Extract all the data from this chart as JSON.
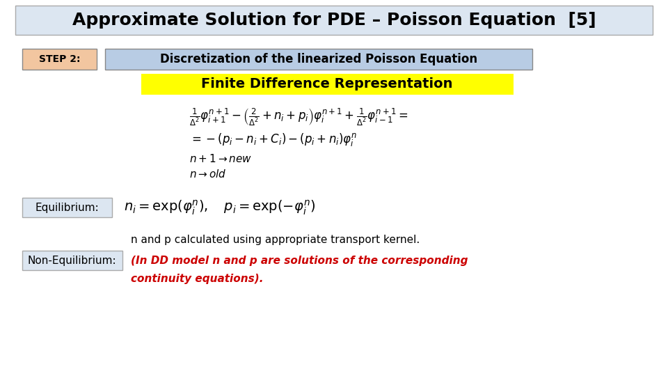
{
  "title": "Approximate Solution for PDE – Poisson Equation  [5]",
  "title_bg": "#dce6f1",
  "title_fontsize": 18,
  "step2_label": "STEP 2:",
  "step2_bg": "#f2c6a0",
  "step2_text": "Discretization of the linearized Poisson Equation",
  "step2_text_bg": "#b8cce4",
  "finite_diff_text": "Finite Difference Representation",
  "finite_diff_bg": "#ffff00",
  "eq1": "$\\frac{1}{\\Delta^2}\\varphi_{i+1}^{n+1} - \\left(\\frac{2}{\\Delta^2} + n_i + p_i\\right)\\varphi_i^{n+1} + \\frac{1}{\\Delta^2}\\varphi_{i-1}^{n+1} =$",
  "eq2": "$= -(p_i - n_i + C_i) - (p_i + n_i)\\varphi_i^n$",
  "eq3": "$n+1 \\rightarrow new$",
  "eq4": "$n \\rightarrow old$",
  "equil_label": "Equilibrium:",
  "equil_label_bg": "#dce6f1",
  "equil_eq": "$n_i = \\exp(\\varphi_i^n), \\quad p_i = \\exp(-\\varphi_i^n)$",
  "noneq_label": "Non-Equilibrium:",
  "noneq_label_bg": "#dce6f1",
  "noneq_text1": "n and p calculated using appropriate transport kernel.",
  "noneq_text2": "(In DD model n and p are solutions of the corresponding",
  "noneq_text3": "continuity equations).",
  "bg_color": "#ffffff",
  "text_color": "#000000",
  "red_color": "#cc0000"
}
